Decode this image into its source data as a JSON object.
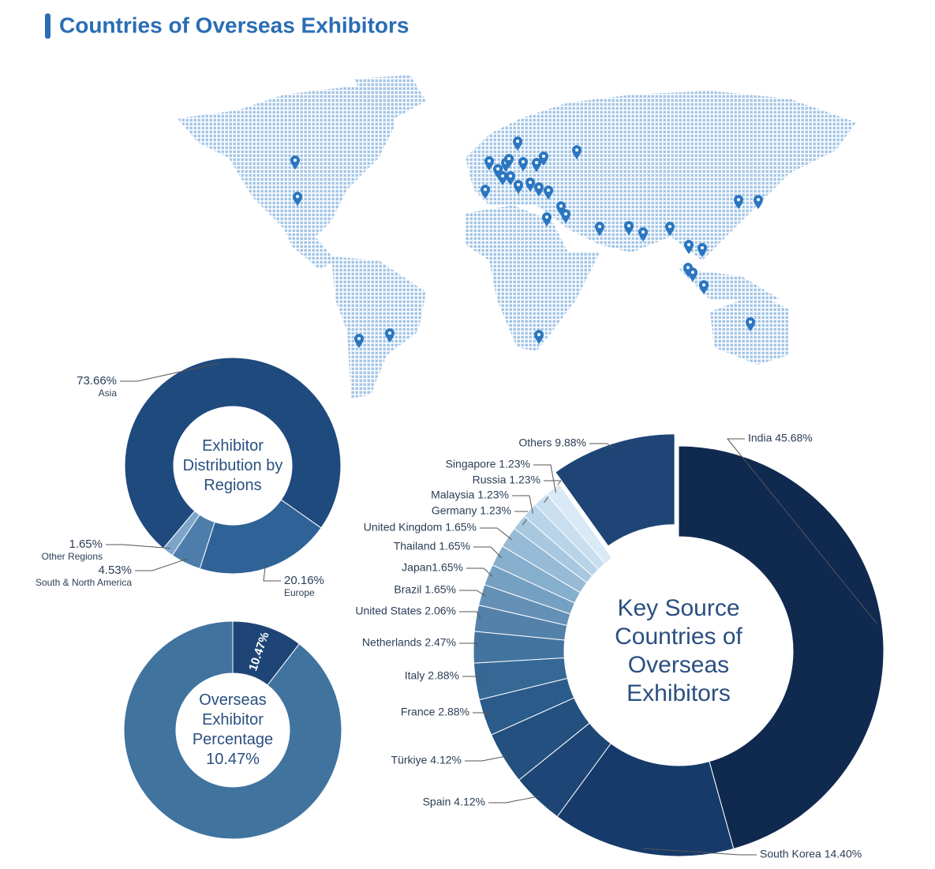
{
  "title": "Countries of Overseas Exhibitors",
  "chart_data": [
    {
      "type": "donut",
      "center_label": "Exhibitor Distribution by Regions",
      "categories": [
        "Asia",
        "Europe",
        "South & North America",
        "Other Regions"
      ],
      "values": [
        73.66,
        20.16,
        4.53,
        1.65
      ],
      "value_labels": [
        "73.66%",
        "20.16%",
        "4.53%",
        "1.65%"
      ],
      "colors": [
        "#1f4a7e",
        "#2f6296",
        "#4d7eab",
        "#7ea5c9"
      ]
    },
    {
      "type": "donut",
      "center_label": "Overseas Exhibitor Percentage",
      "values": [
        10.47,
        89.53
      ],
      "value_labels": [
        "10.47%",
        null
      ],
      "colors": [
        "#1e4576",
        "#41739f"
      ]
    },
    {
      "type": "donut",
      "center_label": "Key Source Countries of Overseas Exhibitors",
      "values": [
        45.68,
        14.4,
        4.12,
        4.12,
        2.88,
        2.88,
        2.47,
        2.06,
        1.65,
        1.65,
        1.65,
        1.65,
        1.23,
        1.23,
        1.23,
        1.23,
        9.88
      ],
      "value_labels": [
        "India 45.68%",
        "South Korea 14.40%",
        "Spain 4.12%",
        "Türkiye 4.12%",
        "France 2.88%",
        "Italy 2.88%",
        "Netherlands 2.47%",
        "United States 2.06%",
        "Brazil 1.65%",
        "Japan1.65%",
        "Thailand 1.65%",
        "United Kingdom 1.65%",
        "Germany 1.23%",
        "Malaysia 1.23%",
        "Russia 1.23%",
        "Singapore 1.23%",
        "Others 9.88%"
      ],
      "colors": [
        "#10294f",
        "#163a6a",
        "#1d4676",
        "#23507f",
        "#2b5b8a",
        "#356895",
        "#43749f",
        "#5481aa",
        "#6590b6",
        "#76a0c2",
        "#86aecd",
        "#97bbd6",
        "#a8c8df",
        "#b9d4e8",
        "#c9dff0",
        "#d9e9f6",
        "#1e4576"
      ]
    }
  ]
}
